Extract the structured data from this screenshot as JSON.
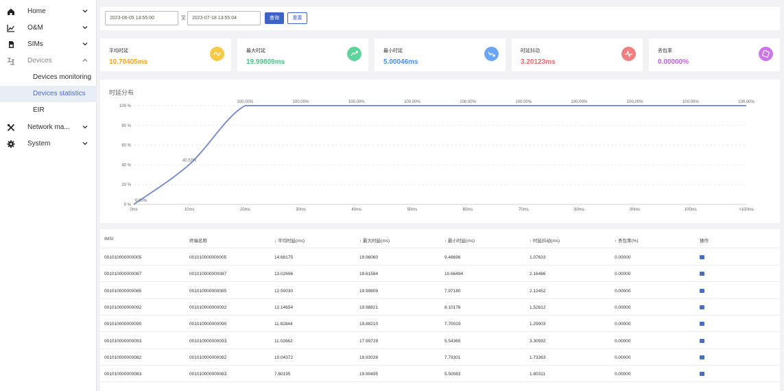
{
  "sidebar": {
    "items": [
      {
        "label": "Home",
        "icon": "home-icon"
      },
      {
        "label": "O&M",
        "icon": "chart-icon"
      },
      {
        "label": "SIMs",
        "icon": "sim-icon"
      },
      {
        "label": "Devices",
        "icon": "devices-icon"
      },
      {
        "label": "Network ma...",
        "icon": "tools-icon"
      },
      {
        "label": "System",
        "icon": "gear-icon"
      }
    ],
    "sub_items": [
      {
        "label": "Devices monitoring"
      },
      {
        "label": "Devices statistics"
      },
      {
        "label": "EIR"
      }
    ]
  },
  "filter": {
    "start_date": "2023-06-05 13:55:00",
    "separator": "至",
    "end_date": "2023-07-18 13:55:04",
    "query_label": "查询",
    "reset_label": "重置"
  },
  "cards": [
    {
      "title": "平均时延",
      "value": "10.70405ms",
      "color": "#f5a623",
      "badge": "#f7c948"
    },
    {
      "title": "最大时延",
      "value": "19.99809ms",
      "color": "#4cc38a",
      "badge": "#5fd39c"
    },
    {
      "title": "最小时延",
      "value": "5.00046ms",
      "color": "#4a8ef0",
      "badge": "#6aa6f4"
    },
    {
      "title": "时延抖动",
      "value": "3.20123ms",
      "color": "#f06b6b",
      "badge": "#f08080"
    },
    {
      "title": "丢包率",
      "value": "0.00000%",
      "color": "#c15ee0",
      "badge": "#cc76ea"
    }
  ],
  "chart_data": {
    "type": "line",
    "title": "时延分布",
    "categories": [
      "0ms",
      "10ms",
      "20ms",
      "30ms",
      "40ms",
      "50ms",
      "60ms",
      "70ms",
      "80ms",
      "90ms",
      "100ms",
      ">100ms"
    ],
    "values": [
      0,
      40.57,
      100,
      100,
      100,
      100,
      100,
      100,
      100,
      100,
      100,
      100
    ],
    "data_labels": [
      "0.00%",
      "40.57%",
      "100.00%",
      "100.00%",
      "100.00%",
      "100.00%",
      "100.00%",
      "100.00%",
      "100.00%",
      "100.00%",
      "100.00%",
      "100.00%"
    ],
    "y_ticks": [
      "0 %",
      "20 %",
      "40 %",
      "60 %",
      "80 %",
      "100 %"
    ],
    "ylim": [
      0,
      100
    ],
    "color": "#7b8fd0"
  },
  "table": {
    "headers": [
      "IMSI",
      "终端名称",
      "平均时延(ms)",
      "最大时延(ms)",
      "最小时延(ms)",
      "时延抖动(ms)",
      "丢包率(%)",
      "操作"
    ],
    "header_arrows": [
      "",
      "",
      "↓",
      "↑",
      "↑",
      "↑",
      "↑",
      ""
    ],
    "rows": [
      [
        "001010000000005",
        "001010000000005",
        "14.68175",
        "19.98060",
        "9.48696",
        "1.07633",
        "0.00000"
      ],
      [
        "001010000000087",
        "001010000000087",
        "13.02696",
        "18.61584",
        "10.66494",
        "2.16486",
        "0.00000"
      ],
      [
        "001010000000085",
        "001010000000085",
        "12.50030",
        "19.99809",
        "7.97180",
        "2.12452",
        "0.00000"
      ],
      [
        "001010000000092",
        "001010000000092",
        "12.14654",
        "19.98821",
        "8.10176",
        "1.52612",
        "0.00000"
      ],
      [
        "001010000000090",
        "001010000000090",
        "11.82844",
        "19.88210",
        "7.70019",
        "1.29903",
        "0.00000"
      ],
      [
        "001010000000093",
        "001010000000093",
        "11.02662",
        "17.99729",
        "5.54365",
        "3.30592",
        "0.00000"
      ],
      [
        "001010000000082",
        "001010000000082",
        "10.04372",
        "19.93028",
        "7.79301",
        "1.73363",
        "0.00000"
      ],
      [
        "001010000000083",
        "001010000000083",
        "7.60195",
        "19.90495",
        "5.50083",
        "1.80311",
        "0.00000"
      ]
    ]
  }
}
